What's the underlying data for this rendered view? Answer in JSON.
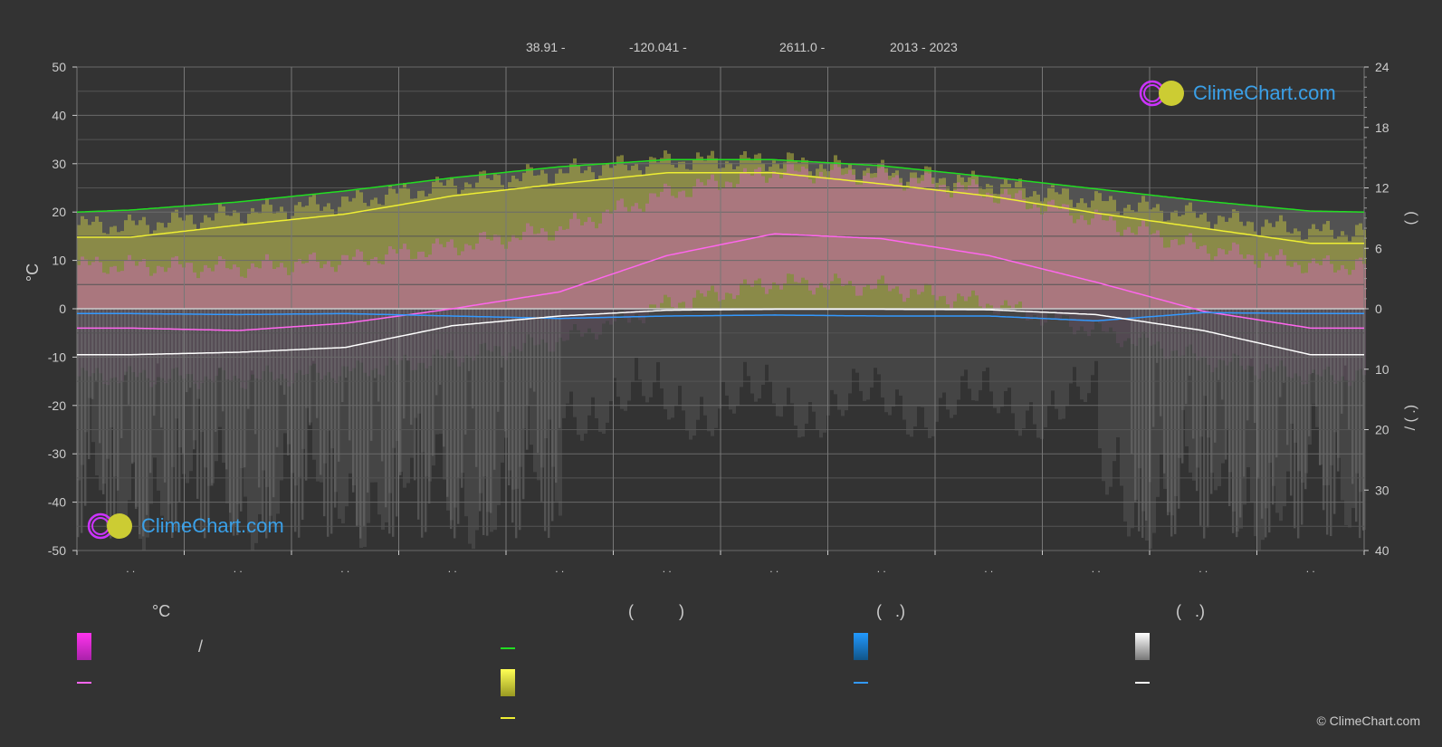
{
  "header": {
    "lat": "38.91 -",
    "lon": "-120.041 -",
    "elev": "2611.0 -",
    "years": "2013 - 2023"
  },
  "brand": {
    "name": "ClimeChart.com",
    "copyright": "© ClimeChart.com"
  },
  "colors": {
    "background": "#333333",
    "daylight": "#22dd22",
    "sunshine": "#eeee33",
    "temp_mean": "#ff66ee",
    "precip_mean": "#3399ff",
    "snow_mean": "#ffffff",
    "temp_band": "#d060c0",
    "sun_band": "#b8b840",
    "grid": "#666666",
    "brand_blue": "#3aa0e8"
  },
  "legend": {
    "temp_head": "°C",
    "sun_head": "(          )",
    "rain_head": "(   .)",
    "snow_head": "(   .)",
    "temp_range_text": "/"
  },
  "chart_data": {
    "type": "line",
    "x_months": [
      1,
      2,
      3,
      4,
      5,
      6,
      7,
      8,
      9,
      10,
      11,
      12
    ],
    "x_tick_labels": [
      ". .",
      ". .",
      ". .",
      ". .",
      ". .",
      ". .",
      ". .",
      ". .",
      ". .",
      ". .",
      ". .",
      ". ."
    ],
    "y_left": {
      "label": "°C",
      "range": [
        -50,
        50
      ],
      "ticks": [
        50,
        40,
        30,
        20,
        10,
        0,
        -10,
        -20,
        -30,
        -40,
        -50
      ]
    },
    "y_right_top": {
      "range": [
        0,
        24
      ],
      "ticks": [
        24,
        18,
        12,
        6,
        0
      ],
      "label": "(   )"
    },
    "y_right_bottom": {
      "range": [
        0,
        40
      ],
      "ticks": [
        10,
        20,
        30,
        40
      ],
      "label": "/   (   .)"
    },
    "series": [
      {
        "key": "daylight",
        "axis": "right_top_hours",
        "x": [
          0,
          0.5,
          1.5,
          2.5,
          3.5,
          4.5,
          5.5,
          6.5,
          7.5,
          8.5,
          9.5,
          10.5,
          11.5,
          12
        ],
        "values": [
          9.6,
          9.8,
          10.6,
          11.7,
          13.0,
          14.1,
          14.8,
          14.8,
          14.2,
          13.1,
          11.9,
          10.7,
          9.7,
          9.6
        ]
      },
      {
        "key": "sunshine",
        "axis": "right_top_hours",
        "x": [
          0,
          0.5,
          1.5,
          2.5,
          3.5,
          4.5,
          5.5,
          6.5,
          7.5,
          8.5,
          9.5,
          10.5,
          11.5,
          12
        ],
        "values": [
          7.1,
          7.1,
          8.3,
          9.4,
          11.2,
          12.4,
          13.5,
          13.5,
          12.4,
          11.2,
          9.5,
          8.0,
          6.5,
          6.5
        ]
      },
      {
        "key": "temp_mean",
        "axis": "left_celsius",
        "x": [
          0,
          0.5,
          1.5,
          2.5,
          3.5,
          4.5,
          5.5,
          6.5,
          7.5,
          8.5,
          9.5,
          10.5,
          11.5,
          12
        ],
        "values": [
          -4,
          -4,
          -4.5,
          -3,
          0,
          3.5,
          11,
          15.5,
          14.5,
          11,
          5.5,
          -0.5,
          -4,
          -4
        ]
      },
      {
        "key": "precip_mean",
        "axis": "left_celsius",
        "x": [
          0,
          0.5,
          1.5,
          2.5,
          3.5,
          4.5,
          5.5,
          6.5,
          7.5,
          8.5,
          9.5,
          10.5,
          11.5,
          12
        ],
        "values": [
          -1,
          -1,
          -1.2,
          -1.0,
          -1.5,
          -2.0,
          -1.5,
          -1.3,
          -1.5,
          -1.5,
          -2.5,
          -0.8,
          -1.0,
          -1.0
        ]
      },
      {
        "key": "snow_mean",
        "axis": "left_celsius",
        "x": [
          0,
          0.5,
          1.5,
          2.5,
          3.5,
          4.5,
          5.5,
          6.5,
          7.5,
          8.5,
          9.5,
          10.5,
          11.5,
          12
        ],
        "values": [
          -9.5,
          -9.5,
          -9.0,
          -8.0,
          -3.5,
          -1.5,
          -0.3,
          -0.1,
          -0.1,
          -0.2,
          -1.2,
          -4.5,
          -9.5,
          -9.5
        ]
      }
    ],
    "grid": true,
    "legend_position": "bottom"
  }
}
